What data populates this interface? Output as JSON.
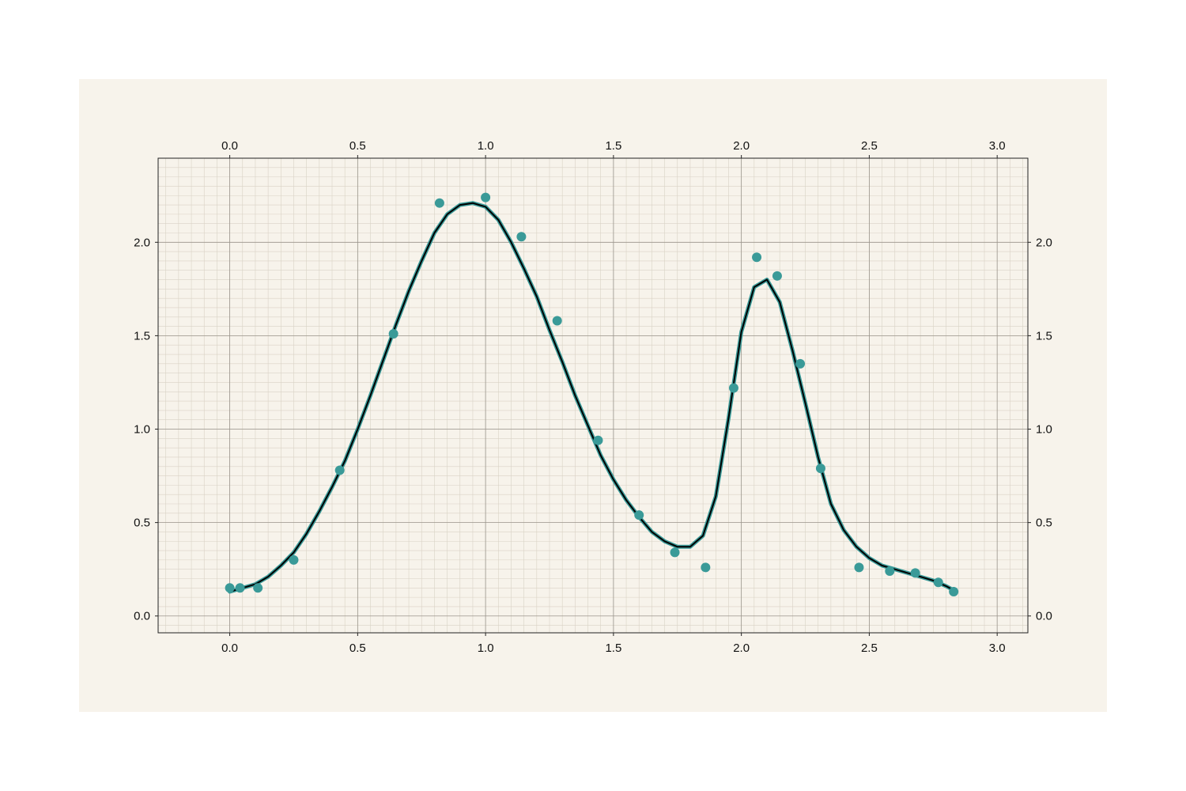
{
  "chart_data": {
    "type": "scatter",
    "title": "",
    "xlabel": "",
    "ylabel": "",
    "xlim": [
      -0.28,
      3.12
    ],
    "ylim": [
      -0.09,
      2.45
    ],
    "grid": true,
    "minor_grid": true,
    "x_ticks": [
      "0.0",
      "0.5",
      "1.0",
      "1.5",
      "2.0",
      "2.5",
      "3.0"
    ],
    "y_ticks": [
      "0.0",
      "0.5",
      "1.0",
      "1.5",
      "2.0"
    ],
    "axes_on": [
      "top",
      "bottom",
      "left",
      "right"
    ],
    "colors": {
      "background": "#f7f3eb",
      "points": "#3a9a98",
      "smooth_line": "#3a9a98",
      "fit_line": "#000000",
      "major_grid": "#9a958c",
      "minor_grid": "#d9d2c5"
    },
    "series": [
      {
        "kind": "points",
        "x": [
          0.0,
          0.04,
          0.11,
          0.25,
          0.43,
          0.64,
          0.82,
          1.0,
          1.14,
          1.28,
          1.44,
          1.6,
          1.74,
          1.86,
          1.97,
          2.06,
          2.14,
          2.23,
          2.31,
          2.46,
          2.58,
          2.68,
          2.77,
          2.83
        ],
        "y": [
          0.15,
          0.15,
          0.15,
          0.3,
          0.78,
          1.51,
          2.21,
          2.24,
          2.03,
          1.58,
          0.94,
          0.54,
          0.34,
          0.26,
          1.22,
          1.92,
          1.82,
          1.35,
          0.79,
          0.26,
          0.24,
          0.23,
          0.18,
          0.13
        ]
      },
      {
        "kind": "line",
        "x": [
          0.0,
          0.05,
          0.1,
          0.15,
          0.2,
          0.25,
          0.3,
          0.35,
          0.4,
          0.45,
          0.5,
          0.55,
          0.6,
          0.65,
          0.7,
          0.75,
          0.8,
          0.85,
          0.9,
          0.95,
          1.0,
          1.05,
          1.1,
          1.15,
          1.2,
          1.25,
          1.3,
          1.35,
          1.4,
          1.45,
          1.5,
          1.55,
          1.6,
          1.65,
          1.7,
          1.75,
          1.8,
          1.85,
          1.9,
          1.95,
          2.0,
          2.05,
          2.1,
          2.15,
          2.2,
          2.25,
          2.3,
          2.35,
          2.4,
          2.45,
          2.5,
          2.55,
          2.6,
          2.65,
          2.7,
          2.75,
          2.8,
          2.84
        ],
        "y": [
          0.13,
          0.15,
          0.17,
          0.21,
          0.27,
          0.34,
          0.44,
          0.56,
          0.69,
          0.83,
          1.0,
          1.18,
          1.37,
          1.56,
          1.74,
          1.9,
          2.05,
          2.15,
          2.2,
          2.21,
          2.19,
          2.12,
          2.0,
          1.86,
          1.71,
          1.53,
          1.36,
          1.18,
          1.02,
          0.86,
          0.73,
          0.62,
          0.53,
          0.45,
          0.4,
          0.37,
          0.37,
          0.43,
          0.64,
          1.06,
          1.52,
          1.76,
          1.8,
          1.68,
          1.42,
          1.14,
          0.85,
          0.6,
          0.46,
          0.37,
          0.31,
          0.27,
          0.25,
          0.23,
          0.21,
          0.19,
          0.16,
          0.13
        ]
      }
    ]
  }
}
